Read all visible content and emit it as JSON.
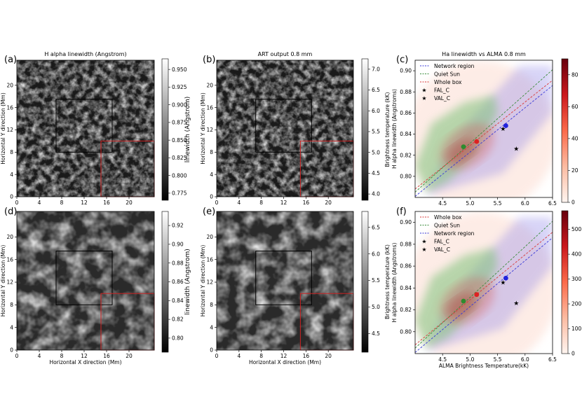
{
  "chart_data": [
    {
      "type": "heatmap",
      "panel_label": "(a)",
      "title": "H alpha linewidth (Angstrom)",
      "xlabel": "",
      "ylabel": "Horizontal Y direction (Mm)",
      "x_ticks": [
        "0",
        "4",
        "8",
        "12",
        "16",
        "20"
      ],
      "y_ticks": [
        "0",
        "4",
        "8",
        "12",
        "16",
        "20"
      ],
      "xlim": [
        0,
        24.5
      ],
      "ylim": [
        0,
        24.5
      ],
      "colormap": "gray",
      "colorbar_label": "linewidth (Angstrom)",
      "colorbar_ticks": [
        "0.775",
        "0.800",
        "0.825",
        "0.850",
        "0.875",
        "0.900",
        "0.925",
        "0.950"
      ],
      "colorbar_range": [
        0.765,
        0.965
      ],
      "boxes": [
        {
          "name": "quiet-sun-box",
          "color": "#000000",
          "x": [
            7,
            17
          ],
          "y": [
            8,
            17.5
          ]
        },
        {
          "name": "network-box",
          "color": "#cc2222",
          "x": [
            15,
            24.5
          ],
          "y": [
            0,
            10
          ]
        }
      ]
    },
    {
      "type": "heatmap",
      "panel_label": "(b)",
      "title": "ART output 0.8 mm",
      "xlabel": "",
      "ylabel": "Horizontal Y direction (Mm)",
      "x_ticks": [
        "0",
        "4",
        "8",
        "12",
        "16",
        "20"
      ],
      "y_ticks": [
        "0",
        "4",
        "8",
        "12",
        "16",
        "20"
      ],
      "xlim": [
        0,
        24.5
      ],
      "ylim": [
        0,
        24.5
      ],
      "colormap": "gray",
      "colorbar_label": "Brightness temperature (kK)",
      "colorbar_ticks": [
        "4.0",
        "4.5",
        "5.0",
        "5.5",
        "6.0",
        "6.5",
        "7.0"
      ],
      "colorbar_range": [
        3.85,
        7.25
      ],
      "boxes": [
        {
          "name": "quiet-sun-box",
          "color": "#000000",
          "x": [
            7,
            17
          ],
          "y": [
            8,
            17.5
          ]
        },
        {
          "name": "network-box",
          "color": "#cc2222",
          "x": [
            15,
            24.5
          ],
          "y": [
            0,
            10
          ]
        }
      ]
    },
    {
      "type": "scatter",
      "panel_label": "(c)",
      "title": "Ha linewidth vs ALMA 0.8 mm",
      "xlabel": "",
      "ylabel": "H alpha linewidth (Angstroms)",
      "x_ticks": [
        "4.5",
        "5.0",
        "5.5",
        "6.0",
        "6.5"
      ],
      "y_ticks": [
        "0.80",
        "0.82",
        "0.84",
        "0.86",
        "0.88",
        "0.90"
      ],
      "xlim": [
        4.0,
        6.5
      ],
      "ylim": [
        0.78,
        0.91
      ],
      "colorbar_ticks": [
        "0",
        "20",
        "40",
        "60",
        "80"
      ],
      "colorbar_range": [
        0,
        90
      ],
      "legend_position": "top-left",
      "legend": [
        {
          "label": "Network region",
          "color": "#3a3ad8",
          "kind": "dashed"
        },
        {
          "label": "Quiet Sun",
          "color": "#3c8c3c",
          "kind": "dashed"
        },
        {
          "label": "Whole box",
          "color": "#d83a3a",
          "kind": "dashed"
        },
        {
          "label": "FAL_C",
          "color": "#e01818",
          "kind": "star"
        },
        {
          "label": "VAL_C",
          "color": "#1a8a1a",
          "kind": "star"
        }
      ],
      "fit_lines": [
        {
          "name": "Network region",
          "color": "#3a3ad8",
          "points": [
            [
              4.0,
              0.781
            ],
            [
              6.5,
              0.886
            ]
          ]
        },
        {
          "name": "Quiet Sun",
          "color": "#3c8c3c",
          "points": [
            [
              4.0,
              0.785
            ],
            [
              6.5,
              0.901
            ]
          ]
        },
        {
          "name": "Whole box",
          "color": "#d83a3a",
          "points": [
            [
              4.0,
              0.788
            ],
            [
              6.5,
              0.891
            ]
          ]
        }
      ],
      "points": [
        {
          "name": "quiet-sun-mean",
          "x": 4.88,
          "y": 0.828,
          "color": "#2e8b2e",
          "marker": "dot"
        },
        {
          "name": "whole-box-mean",
          "x": 5.12,
          "y": 0.833,
          "color": "#dd2222",
          "marker": "dot"
        },
        {
          "name": "network-mean",
          "x": 5.65,
          "y": 0.848,
          "color": "#2222dd",
          "marker": "dot"
        },
        {
          "name": "FAL_C",
          "x": 5.84,
          "y": 0.826,
          "color": "#e01818",
          "marker": "star"
        },
        {
          "name": "VAL_C",
          "x": 5.6,
          "y": 0.845,
          "color": "#1a8a1a",
          "marker": "star"
        }
      ]
    },
    {
      "type": "heatmap",
      "panel_label": "(d)",
      "title": "",
      "xlabel": "Horizontal X direction (Mm)",
      "ylabel": "Horizontal Y direction (Mm)",
      "x_ticks": [
        "0",
        "4",
        "8",
        "12",
        "16",
        "20"
      ],
      "y_ticks": [
        "0",
        "4",
        "8",
        "12",
        "16",
        "20"
      ],
      "xlim": [
        0,
        24.5
      ],
      "ylim": [
        0,
        24.5
      ],
      "colormap": "gray",
      "colorbar_label": "linewidth (Angstrom)",
      "colorbar_ticks": [
        "0.80",
        "0.82",
        "0.84",
        "0.86",
        "0.88",
        "0.90",
        "0.92"
      ],
      "colorbar_range": [
        0.785,
        0.935
      ],
      "boxes": [
        {
          "name": "quiet-sun-box",
          "color": "#000000",
          "x": [
            7,
            17
          ],
          "y": [
            8,
            17.5
          ]
        },
        {
          "name": "network-box",
          "color": "#cc2222",
          "x": [
            15,
            24.5
          ],
          "y": [
            0,
            10
          ]
        }
      ]
    },
    {
      "type": "heatmap",
      "panel_label": "(e)",
      "title": "",
      "xlabel": "Horizontal X direction (Mm)",
      "ylabel": "Horizontal Y direction (Mm)",
      "x_ticks": [
        "0",
        "4",
        "8",
        "12",
        "16",
        "20"
      ],
      "y_ticks": [
        "0",
        "4",
        "8",
        "12",
        "16",
        "20"
      ],
      "xlim": [
        0,
        24.5
      ],
      "ylim": [
        0,
        24.5
      ],
      "colormap": "gray",
      "colorbar_label": "Brightness temperature (kK)",
      "colorbar_ticks": [
        "4.5",
        "5.0",
        "5.5",
        "6.0",
        "6.5"
      ],
      "colorbar_range": [
        4.15,
        6.8
      ],
      "boxes": [
        {
          "name": "quiet-sun-box",
          "color": "#000000",
          "x": [
            7,
            17
          ],
          "y": [
            8,
            17.5
          ]
        },
        {
          "name": "network-box",
          "color": "#cc2222",
          "x": [
            15,
            24.5
          ],
          "y": [
            0,
            10
          ]
        }
      ]
    },
    {
      "type": "scatter",
      "panel_label": "(f)",
      "title": "",
      "xlabel": "ALMA Brightness Temperature(kK)",
      "ylabel": "H alpha linewidth (Angstroms)",
      "x_ticks": [
        "4.5",
        "5.0",
        "5.5",
        "6.0",
        "6.5"
      ],
      "y_ticks": [
        "0.80",
        "0.82",
        "0.84",
        "0.86",
        "0.88",
        "0.90"
      ],
      "xlim": [
        4.0,
        6.5
      ],
      "ylim": [
        0.78,
        0.91
      ],
      "colorbar_ticks": [
        "0",
        "100",
        "200",
        "300",
        "400",
        "500"
      ],
      "colorbar_range": [
        0,
        575
      ],
      "legend_position": "top-left",
      "legend": [
        {
          "label": "Whole box",
          "color": "#d83a3a",
          "kind": "dashed"
        },
        {
          "label": "Quiet Sun",
          "color": "#3c8c3c",
          "kind": "dashed"
        },
        {
          "label": "Network region",
          "color": "#3a3ad8",
          "kind": "dashed"
        },
        {
          "label": "FAL_C",
          "color": "#e01818",
          "kind": "star"
        },
        {
          "label": "VAL_C",
          "color": "#1a8a1a",
          "kind": "star"
        }
      ],
      "fit_lines": [
        {
          "name": "Network region",
          "color": "#3a3ad8",
          "points": [
            [
              4.0,
              0.781
            ],
            [
              6.5,
              0.886
            ]
          ]
        },
        {
          "name": "Quiet Sun",
          "color": "#3c8c3c",
          "points": [
            [
              4.0,
              0.785
            ],
            [
              6.5,
              0.901
            ]
          ]
        },
        {
          "name": "Whole box",
          "color": "#d83a3a",
          "points": [
            [
              4.0,
              0.788
            ],
            [
              6.5,
              0.891
            ]
          ]
        }
      ],
      "points": [
        {
          "name": "quiet-sun-mean",
          "x": 4.88,
          "y": 0.828,
          "color": "#2e8b2e",
          "marker": "dot"
        },
        {
          "name": "whole-box-mean",
          "x": 5.12,
          "y": 0.834,
          "color": "#dd2222",
          "marker": "dot"
        },
        {
          "name": "network-mean",
          "x": 5.65,
          "y": 0.849,
          "color": "#2222dd",
          "marker": "dot"
        },
        {
          "name": "FAL_C",
          "x": 5.84,
          "y": 0.826,
          "color": "#e01818",
          "marker": "star"
        },
        {
          "name": "VAL_C",
          "x": 5.6,
          "y": 0.845,
          "color": "#1a8a1a",
          "marker": "star"
        }
      ]
    }
  ]
}
